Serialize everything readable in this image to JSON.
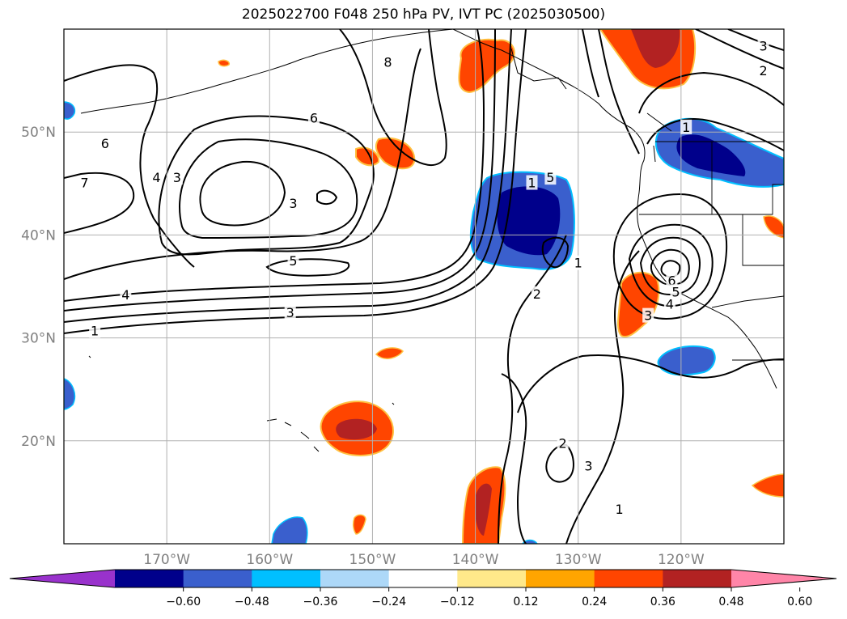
{
  "title": "2025022700 F048 250 hPa PV, IVT PC (2025030500)",
  "map": {
    "lat_range": [
      10,
      60
    ],
    "lon_range": [
      -180,
      -110
    ],
    "lat_ticks": [
      {
        "label": "50°N",
        "value": 50
      },
      {
        "label": "40°N",
        "value": 40
      },
      {
        "label": "30°N",
        "value": 30
      },
      {
        "label": "20°N",
        "value": 20
      }
    ],
    "lon_ticks": [
      {
        "label": "170°W",
        "value": -170
      },
      {
        "label": "160°W",
        "value": -160
      },
      {
        "label": "150°W",
        "value": -150
      },
      {
        "label": "140°W",
        "value": -140
      },
      {
        "label": "130°W",
        "value": -130
      },
      {
        "label": "120°W",
        "value": -120
      }
    ],
    "grid": true
  },
  "contour_labels": [
    {
      "text": "8",
      "lon": -148.5,
      "lat": 56.8
    },
    {
      "text": "6",
      "lon": -176.0,
      "lat": 48.9
    },
    {
      "text": "6",
      "lon": -155.7,
      "lat": 51.4
    },
    {
      "text": "7",
      "lon": -178.0,
      "lat": 45.1
    },
    {
      "text": "4",
      "lon": -171.0,
      "lat": 45.6
    },
    {
      "text": "3",
      "lon": -169.0,
      "lat": 45.6
    },
    {
      "text": "3",
      "lon": -157.7,
      "lat": 43.1
    },
    {
      "text": "5",
      "lon": -157.7,
      "lat": 37.5
    },
    {
      "text": "4",
      "lon": -174.0,
      "lat": 34.2
    },
    {
      "text": "3",
      "lon": -158.0,
      "lat": 32.5
    },
    {
      "text": "1",
      "lon": -177.0,
      "lat": 30.7
    },
    {
      "text": "1",
      "lon": -134.5,
      "lat": 45.1
    },
    {
      "text": "5",
      "lon": -132.7,
      "lat": 45.6
    },
    {
      "text": "2",
      "lon": -134.0,
      "lat": 34.3
    },
    {
      "text": "1",
      "lon": -130.0,
      "lat": 37.3
    },
    {
      "text": "2",
      "lon": -131.5,
      "lat": 19.8
    },
    {
      "text": "3",
      "lon": -129.0,
      "lat": 17.6
    },
    {
      "text": "1",
      "lon": -126.0,
      "lat": 13.4
    },
    {
      "text": "1",
      "lon": -119.5,
      "lat": 50.5
    },
    {
      "text": "2",
      "lon": -112.0,
      "lat": 56.0
    },
    {
      "text": "3",
      "lon": -112.0,
      "lat": 58.4
    },
    {
      "text": "6",
      "lon": -120.9,
      "lat": 35.6
    },
    {
      "text": "5",
      "lon": -120.5,
      "lat": 34.5
    },
    {
      "text": "4",
      "lon": -121.1,
      "lat": 33.3
    },
    {
      "text": "3",
      "lon": -123.2,
      "lat": 32.2
    }
  ],
  "colorbar": {
    "labels": [
      "−0.60",
      "−0.48",
      "−0.36",
      "−0.24",
      "−0.12",
      "0.12",
      "0.24",
      "0.36",
      "0.48",
      "0.60"
    ],
    "colors": [
      "#9932cc",
      "#00008b",
      "#3a5fcd",
      "#00bfff",
      "#add8f8",
      "#ffffff",
      "#ffe98a",
      "#ffa500",
      "#ff4500",
      "#b22222",
      "#ff85a8"
    ]
  }
}
